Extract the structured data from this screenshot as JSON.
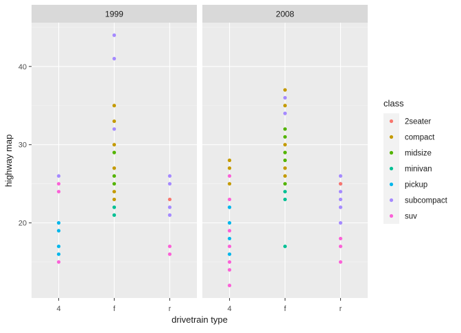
{
  "chart_data": {
    "type": "scatter",
    "facet_labels": [
      "1999",
      "2008"
    ],
    "x_categories": [
      "4",
      "f",
      "r"
    ],
    "xlabel": "drivetrain type",
    "ylabel": "highway map",
    "y_ticks": [
      20,
      30,
      40
    ],
    "ylim": [
      10.4,
      45.6
    ],
    "grid": true,
    "legend_position": "right",
    "legend_title": "class",
    "legend": [
      {
        "name": "2seater",
        "color": "#F8766D"
      },
      {
        "name": "compact",
        "color": "#C49A00"
      },
      {
        "name": "midsize",
        "color": "#53B400"
      },
      {
        "name": "minivan",
        "color": "#00C094"
      },
      {
        "name": "pickup",
        "color": "#00B6EB"
      },
      {
        "name": "subcompact",
        "color": "#A58AFF"
      },
      {
        "name": "suv",
        "color": "#FB61D7"
      }
    ],
    "panels": [
      {
        "label": "1999",
        "points": [
          {
            "x": "4",
            "y": 26,
            "class": "subcompact"
          },
          {
            "x": "4",
            "y": 25,
            "class": "suv"
          },
          {
            "x": "4",
            "y": 24,
            "class": "suv"
          },
          {
            "x": "4",
            "y": 20,
            "class": "pickup"
          },
          {
            "x": "4",
            "y": 19,
            "class": "pickup"
          },
          {
            "x": "4",
            "y": 17,
            "class": "pickup"
          },
          {
            "x": "4",
            "y": 16,
            "class": "pickup"
          },
          {
            "x": "4",
            "y": 15,
            "class": "suv"
          },
          {
            "x": "f",
            "y": 44,
            "class": "subcompact"
          },
          {
            "x": "f",
            "y": 41,
            "class": "subcompact"
          },
          {
            "x": "f",
            "y": 35,
            "class": "compact"
          },
          {
            "x": "f",
            "y": 33,
            "class": "compact"
          },
          {
            "x": "f",
            "y": 32,
            "class": "subcompact"
          },
          {
            "x": "f",
            "y": 30,
            "class": "compact"
          },
          {
            "x": "f",
            "y": 29,
            "class": "midsize"
          },
          {
            "x": "f",
            "y": 27,
            "class": "compact"
          },
          {
            "x": "f",
            "y": 26,
            "class": "midsize"
          },
          {
            "x": "f",
            "y": 25,
            "class": "midsize"
          },
          {
            "x": "f",
            "y": 24,
            "class": "compact"
          },
          {
            "x": "f",
            "y": 23,
            "class": "compact"
          },
          {
            "x": "f",
            "y": 22,
            "class": "minivan"
          },
          {
            "x": "f",
            "y": 21,
            "class": "minivan"
          },
          {
            "x": "r",
            "y": 26,
            "class": "subcompact"
          },
          {
            "x": "r",
            "y": 25,
            "class": "subcompact"
          },
          {
            "x": "r",
            "y": 23,
            "class": "2seater"
          },
          {
            "x": "r",
            "y": 22,
            "class": "subcompact"
          },
          {
            "x": "r",
            "y": 21,
            "class": "subcompact"
          },
          {
            "x": "r",
            "y": 17,
            "class": "suv"
          },
          {
            "x": "r",
            "y": 16,
            "class": "suv"
          }
        ]
      },
      {
        "label": "2008",
        "points": [
          {
            "x": "4",
            "y": 28,
            "class": "compact"
          },
          {
            "x": "4",
            "y": 27,
            "class": "compact"
          },
          {
            "x": "4",
            "y": 26,
            "class": "suv"
          },
          {
            "x": "4",
            "y": 25,
            "class": "compact"
          },
          {
            "x": "4",
            "y": 23,
            "class": "suv"
          },
          {
            "x": "4",
            "y": 22,
            "class": "pickup"
          },
          {
            "x": "4",
            "y": 20,
            "class": "pickup"
          },
          {
            "x": "4",
            "y": 19,
            "class": "suv"
          },
          {
            "x": "4",
            "y": 18,
            "class": "pickup"
          },
          {
            "x": "4",
            "y": 17,
            "class": "suv"
          },
          {
            "x": "4",
            "y": 16,
            "class": "pickup"
          },
          {
            "x": "4",
            "y": 15,
            "class": "suv"
          },
          {
            "x": "4",
            "y": 14,
            "class": "suv"
          },
          {
            "x": "4",
            "y": 12,
            "class": "suv"
          },
          {
            "x": "f",
            "y": 37,
            "class": "compact"
          },
          {
            "x": "f",
            "y": 36,
            "class": "subcompact"
          },
          {
            "x": "f",
            "y": 35,
            "class": "compact"
          },
          {
            "x": "f",
            "y": 34,
            "class": "subcompact"
          },
          {
            "x": "f",
            "y": 32,
            "class": "midsize"
          },
          {
            "x": "f",
            "y": 31,
            "class": "midsize"
          },
          {
            "x": "f",
            "y": 30,
            "class": "compact"
          },
          {
            "x": "f",
            "y": 29,
            "class": "midsize"
          },
          {
            "x": "f",
            "y": 28,
            "class": "midsize"
          },
          {
            "x": "f",
            "y": 27,
            "class": "compact"
          },
          {
            "x": "f",
            "y": 26,
            "class": "compact"
          },
          {
            "x": "f",
            "y": 25,
            "class": "midsize"
          },
          {
            "x": "f",
            "y": 24,
            "class": "minivan"
          },
          {
            "x": "f",
            "y": 23,
            "class": "minivan"
          },
          {
            "x": "f",
            "y": 17,
            "class": "minivan"
          },
          {
            "x": "r",
            "y": 26,
            "class": "subcompact"
          },
          {
            "x": "r",
            "y": 25,
            "class": "subcompact"
          },
          {
            "x": "r",
            "y": 25,
            "class": "2seater"
          },
          {
            "x": "r",
            "y": 24,
            "class": "subcompact"
          },
          {
            "x": "r",
            "y": 23,
            "class": "subcompact"
          },
          {
            "x": "r",
            "y": 22,
            "class": "subcompact"
          },
          {
            "x": "r",
            "y": 20,
            "class": "subcompact"
          },
          {
            "x": "r",
            "y": 18,
            "class": "suv"
          },
          {
            "x": "r",
            "y": 17,
            "class": "suv"
          },
          {
            "x": "r",
            "y": 15,
            "class": "suv"
          }
        ]
      }
    ]
  }
}
